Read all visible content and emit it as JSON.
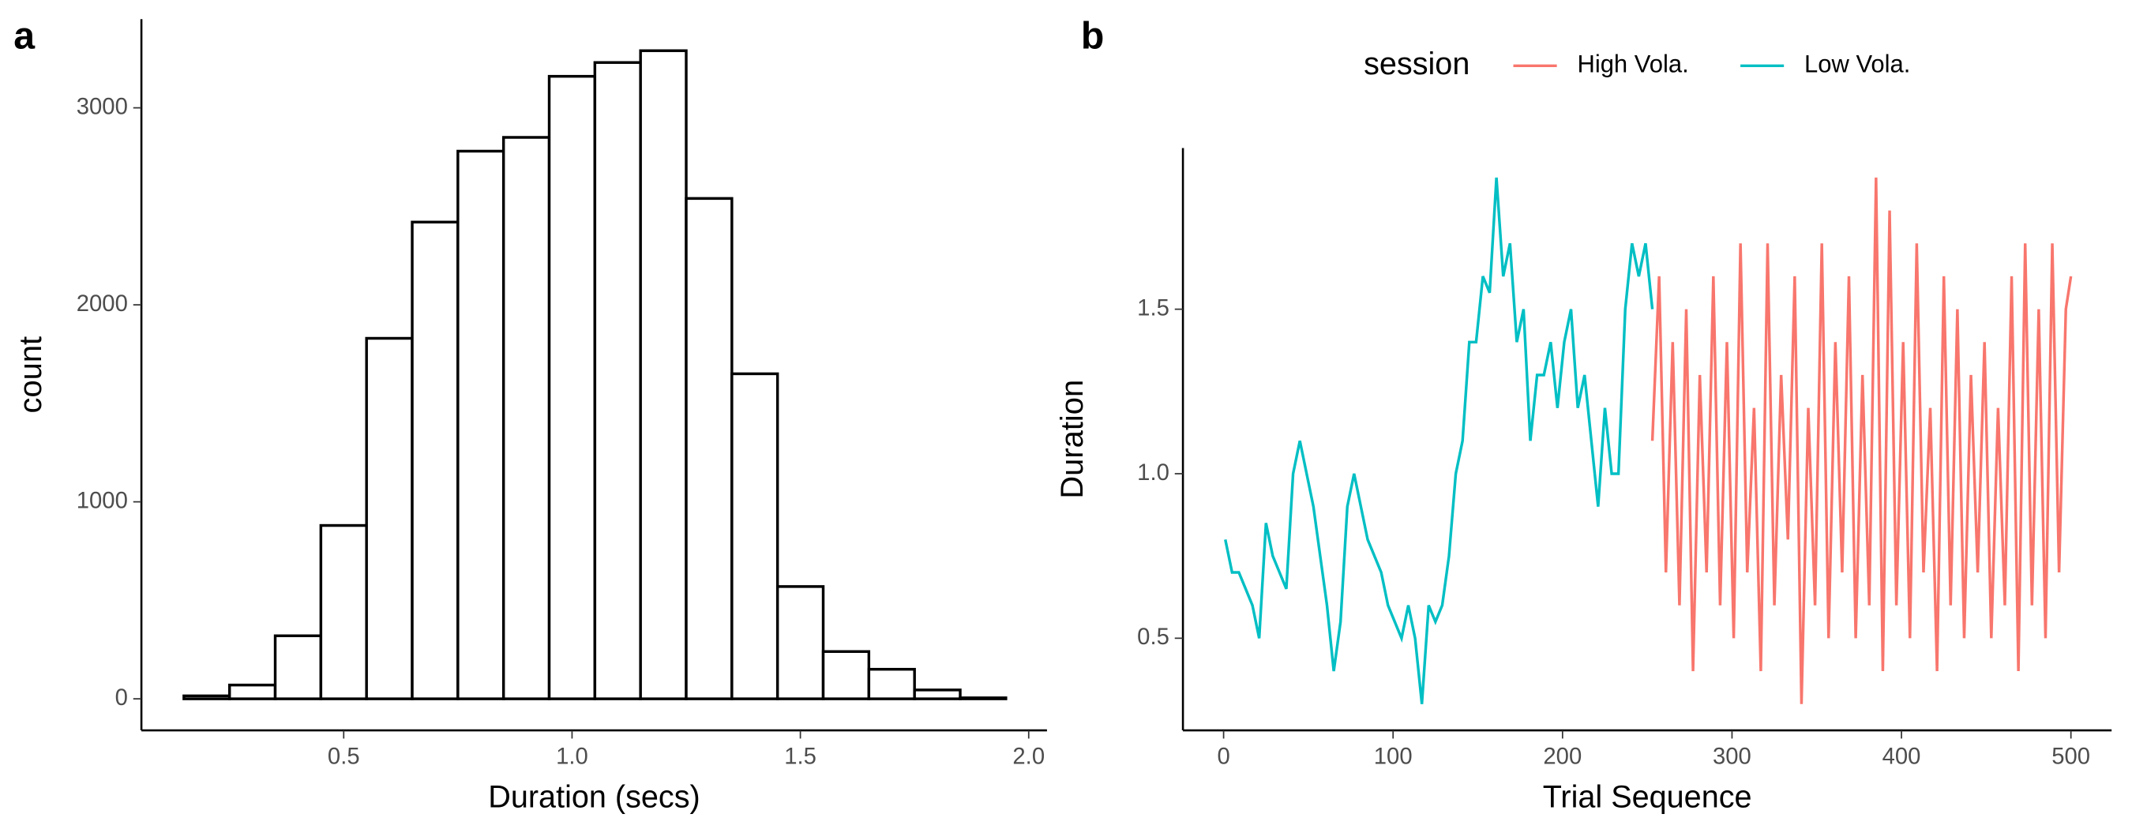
{
  "chart_data": [
    {
      "type": "histogram",
      "panel_label": "a",
      "x_label": "Duration (secs)",
      "y_label": "count",
      "bins": [
        0.15,
        0.25,
        0.35,
        0.45,
        0.55,
        0.65,
        0.75,
        0.85,
        0.95,
        1.05,
        1.15,
        1.25,
        1.35,
        1.45,
        1.55,
        1.65,
        1.75,
        1.85,
        1.95
      ],
      "counts": [
        15,
        70,
        320,
        880,
        1830,
        2420,
        2780,
        2850,
        3160,
        3230,
        3290,
        2540,
        1650,
        570,
        240,
        150,
        45,
        5
      ],
      "color": "#ffffff",
      "edgecolor": "#000000",
      "xlim": [
        0.057,
        2.04
      ],
      "ylim": [
        -160,
        3450
      ],
      "xticks": [
        0.5,
        {
          "value": 1,
          "label": "1.0"
        },
        1.5,
        {
          "value": 2,
          "label": "2.0"
        }
      ],
      "yticks": [
        0,
        1000,
        2000,
        3000
      ],
      "grid": false
    },
    {
      "type": "line",
      "panel_label": "b",
      "x_label": "Trial Sequence",
      "y_label": "Duration",
      "legend_title": "session",
      "xlim": [
        -24,
        524
      ],
      "ylim": [
        0.22,
        1.99
      ],
      "xticks": [
        0,
        100,
        200,
        300,
        400,
        500
      ],
      "yticks": [
        0.5,
        {
          "value": 1,
          "label": "1.0"
        },
        1.5
      ],
      "grid": false,
      "legend": "top",
      "series": [
        {
          "name": "High Vola.",
          "color": "#F8766D",
          "x": [
            253,
            257,
            261,
            265,
            269,
            273,
            277,
            281,
            285,
            289,
            293,
            297,
            301,
            305,
            309,
            313,
            317,
            321,
            325,
            329,
            333,
            337,
            341,
            345,
            349,
            353,
            357,
            361,
            365,
            369,
            373,
            377,
            381,
            385,
            389,
            393,
            397,
            401,
            405,
            409,
            413,
            417,
            421,
            425,
            429,
            433,
            437,
            441,
            445,
            449,
            453,
            457,
            461,
            465,
            469,
            473,
            477,
            481,
            485,
            489,
            493,
            497,
            500
          ],
          "values": [
            1.1,
            1.6,
            0.7,
            1.4,
            0.6,
            1.5,
            0.4,
            1.3,
            0.7,
            1.6,
            0.6,
            1.4,
            0.5,
            1.7,
            0.7,
            1.2,
            0.4,
            1.7,
            0.6,
            1.3,
            0.8,
            1.6,
            0.3,
            1.2,
            0.6,
            1.7,
            0.5,
            1.4,
            0.7,
            1.6,
            0.5,
            1.3,
            0.6,
            1.9,
            0.4,
            1.8,
            0.6,
            1.4,
            0.5,
            1.7,
            0.7,
            1.2,
            0.4,
            1.6,
            0.6,
            1.5,
            0.5,
            1.3,
            0.7,
            1.4,
            0.5,
            1.2,
            0.6,
            1.6,
            0.4,
            1.7,
            0.6,
            1.5,
            0.5,
            1.7,
            0.7,
            1.5,
            1.6
          ]
        },
        {
          "name": "Low Vola.",
          "color": "#00BFC4",
          "x": [
            1,
            5,
            9,
            13,
            17,
            21,
            25,
            29,
            33,
            37,
            41,
            45,
            49,
            53,
            57,
            61,
            65,
            69,
            73,
            77,
            81,
            85,
            89,
            93,
            97,
            101,
            105,
            109,
            113,
            117,
            121,
            125,
            129,
            133,
            137,
            141,
            145,
            149,
            153,
            157,
            161,
            165,
            169,
            173,
            177,
            181,
            185,
            189,
            193,
            197,
            201,
            205,
            209,
            213,
            217,
            221,
            225,
            229,
            233,
            237,
            241,
            245,
            249,
            253
          ],
          "values": [
            0.8,
            0.7,
            0.7,
            0.65,
            0.6,
            0.5,
            0.85,
            0.75,
            0.7,
            0.65,
            1.0,
            1.1,
            1.0,
            0.9,
            0.75,
            0.6,
            0.4,
            0.55,
            0.9,
            1.0,
            0.9,
            0.8,
            0.75,
            0.7,
            0.6,
            0.55,
            0.5,
            0.6,
            0.5,
            0.3,
            0.6,
            0.55,
            0.6,
            0.75,
            1.0,
            1.1,
            1.4,
            1.4,
            1.6,
            1.55,
            1.9,
            1.6,
            1.7,
            1.4,
            1.5,
            1.1,
            1.3,
            1.3,
            1.4,
            1.2,
            1.4,
            1.5,
            1.2,
            1.3,
            1.1,
            0.9,
            1.2,
            1.0,
            1.0,
            1.5,
            1.7,
            1.6,
            1.7,
            1.5
          ]
        }
      ]
    }
  ]
}
